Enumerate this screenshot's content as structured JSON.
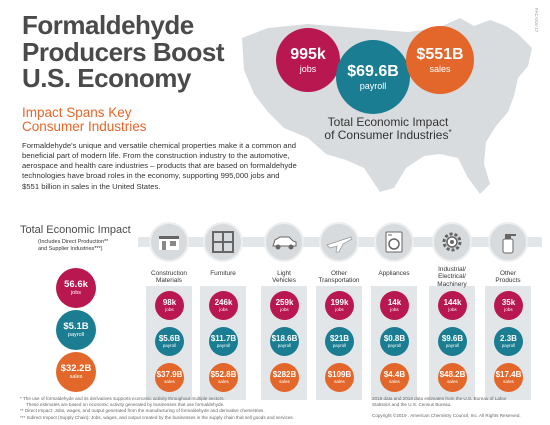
{
  "header": {
    "title_line1": "Formaldehyde",
    "title_line2": "Producers Boost",
    "title_line3": "U.S. Economy",
    "subtitle_line1": "Impact Spans Key",
    "subtitle_line2": "Consumer Industries",
    "intro": "Formaldehyde's unique and versatile chemical properties make it a common and beneficial part of modern life. From the construction industry to the automotive, aerospace and health care industries – products that are based on formaldehyde technologies have broad roles in the economy, supporting 995,000 jobs and $551 billion in sales in the United States.",
    "code": "FAC-016-17"
  },
  "totals": {
    "jobs_value": "995k",
    "jobs_label": "jobs",
    "payroll_value": "$69.6B",
    "payroll_label": "payroll",
    "sales_value": "$551B",
    "sales_label": "sales",
    "caption_line1": "Total Economic Impact",
    "caption_line2": "of Consumer Industries",
    "caption_mark": "*"
  },
  "impact": {
    "title": "Total Economic Impact",
    "sub1": "(Includes Direct Production**",
    "sub2": "and Supplier Industries***)",
    "jobs_value": "56.6k",
    "jobs_label": "jobs",
    "payroll_value": "$5.1B",
    "payroll_label": "payroll",
    "sales_value": "$32.2B",
    "sales_label": "sales"
  },
  "industries": [
    {
      "name1": "Construction",
      "name2": "Materials",
      "name3": "",
      "icon": "building-icon",
      "jobs": "98k",
      "payroll": "$5.6B",
      "sales": "$37.9B"
    },
    {
      "name1": "Furniture",
      "name2": "",
      "name3": "",
      "icon": "shelf-icon",
      "jobs": "246k",
      "payroll": "$11.7B",
      "sales": "$52.8B"
    },
    {
      "name1": "Light",
      "name2": "Vehicles",
      "name3": "",
      "icon": "car-icon",
      "jobs": "259k",
      "payroll": "$18.6B",
      "sales": "$282B"
    },
    {
      "name1": "Other",
      "name2": "Transportation",
      "name3": "",
      "icon": "airplane-icon",
      "jobs": "199k",
      "payroll": "$21B",
      "sales": "$109B"
    },
    {
      "name1": "Appliances",
      "name2": "",
      "name3": "",
      "icon": "washer-icon",
      "jobs": "14k",
      "payroll": "$0.8B",
      "sales": "$4.4B"
    },
    {
      "name1": "Industrial/",
      "name2": "Electrical/",
      "name3": "Machinery",
      "icon": "gear-icon",
      "jobs": "144k",
      "payroll": "$9.6B",
      "sales": "$48.2B"
    },
    {
      "name1": "Other",
      "name2": "Products",
      "name3": "",
      "icon": "spray-bottle-icon",
      "jobs": "35k",
      "payroll": "2.3B",
      "sales": "$17.4B"
    }
  ],
  "unit_labels": {
    "jobs": "jobs",
    "payroll": "payroll",
    "sales": "sales"
  },
  "footnotes": {
    "n1": "* The use of formaldehyde and its derivatives supports economic activity throughout multiple sectors.",
    "n1b": "These estimates are based on economic activity generated by businesses that use formaldehyde.",
    "n2": "** Direct Impact: Jobs, wages, and output generated from the manufacturing of formaldehyde and derivative chemistries.",
    "n3": "*** Indirect Impact (Supply Chain): Jobs, wages, and output created by the businesses in the supply chain that sell goods and services.",
    "src1": "2018 data and 2018 data estimates from the U.S. Bureau of Labor",
    "src2": "Statistics and the U.S. Census Bureau.",
    "copyright": "Copyright ©2019 . American Chemistry Council, Inc. All Rights Reserved."
  },
  "colors": {
    "jobs": "#b8174f",
    "payroll": "#1b7d92",
    "sales": "#e3672a",
    "title": "#4a4a4a",
    "subtitle": "#e3672a"
  }
}
